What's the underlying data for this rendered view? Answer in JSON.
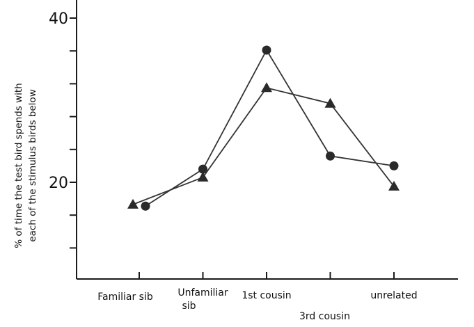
{
  "chart_data": {
    "type": "line",
    "categories": [
      [
        "Familiar sib"
      ],
      [
        "Unfamiliar",
        "sib"
      ],
      [
        "1st cousin"
      ],
      [
        "3rd cousin"
      ],
      [
        "unrelated"
      ]
    ],
    "ylabel_lines": [
      "% of time the test bird spends with",
      "each of the stimulus birds below"
    ],
    "xlabel": "",
    "title": "",
    "ylim": [
      10,
      40
    ],
    "y_tick_step": 4,
    "y_tick_labels": [
      {
        "value": 20,
        "label": "20"
      },
      {
        "value": 40,
        "label": "40"
      }
    ],
    "grid": false,
    "series": [
      {
        "marker": "circle",
        "x_offset": 0.2,
        "values": [
          17.1,
          21.6,
          36.1,
          23.2,
          22.0
        ]
      },
      {
        "marker": "triangle",
        "x_offset": 0,
        "values": [
          17.3,
          20.6,
          31.5,
          29.6,
          19.5
        ]
      }
    ],
    "colors": {
      "ink": "#2a2a2a"
    }
  }
}
